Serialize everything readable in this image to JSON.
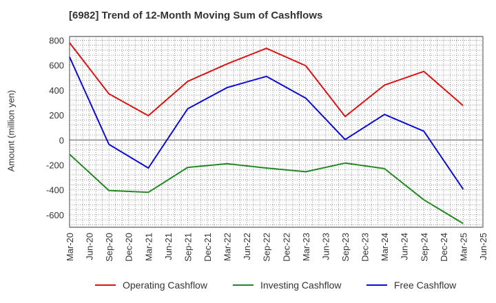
{
  "title": "[6982]  Trend of 12-Month Moving Sum of Cashflows",
  "chart_data": {
    "type": "line",
    "ylabel": "Amount (million yen)",
    "xlabel": "",
    "ylim": [
      -700,
      830
    ],
    "yticks": [
      800,
      600,
      400,
      200,
      0,
      -200,
      -400,
      -600
    ],
    "x": [
      "Mar-20",
      "Jun-20",
      "Sep-20",
      "Dec-20",
      "Mar-21",
      "Jun-21",
      "Sep-21",
      "Dec-21",
      "Mar-22",
      "Jun-22",
      "Sep-22",
      "Dec-22",
      "Mar-23",
      "Jun-23",
      "Sep-23",
      "Dec-23",
      "Mar-24",
      "Jun-24",
      "Sep-24",
      "Dec-24",
      "Mar-25",
      "Jun-25"
    ],
    "grid": true,
    "legend_position": "bottom",
    "series": [
      {
        "name": "Operating Cashflow",
        "color": "#dd1111",
        "points": [
          [
            "Mar-20",
            780
          ],
          [
            "Sep-20",
            370
          ],
          [
            "Mar-21",
            195
          ],
          [
            "Sep-21",
            470
          ],
          [
            "Mar-22",
            610
          ],
          [
            "Sep-22",
            735
          ],
          [
            "Mar-23",
            595
          ],
          [
            "Sep-23",
            188
          ],
          [
            "Mar-24",
            440
          ],
          [
            "Sep-24",
            550
          ],
          [
            "Mar-25",
            275
          ]
        ]
      },
      {
        "name": "Investing Cashflow",
        "color": "#228822",
        "points": [
          [
            "Mar-20",
            -115
          ],
          [
            "Sep-20",
            -405
          ],
          [
            "Mar-21",
            -420
          ],
          [
            "Sep-21",
            -220
          ],
          [
            "Mar-22",
            -190
          ],
          [
            "Sep-22",
            -225
          ],
          [
            "Mar-23",
            -255
          ],
          [
            "Sep-23",
            -185
          ],
          [
            "Mar-24",
            -230
          ],
          [
            "Sep-24",
            -480
          ],
          [
            "Mar-25",
            -670
          ]
        ]
      },
      {
        "name": "Free Cashflow",
        "color": "#0a0ad6",
        "points": [
          [
            "Mar-20",
            665
          ],
          [
            "Sep-20",
            -35
          ],
          [
            "Mar-21",
            -225
          ],
          [
            "Sep-21",
            250
          ],
          [
            "Mar-22",
            420
          ],
          [
            "Sep-22",
            510
          ],
          [
            "Mar-23",
            335
          ],
          [
            "Sep-23",
            3
          ],
          [
            "Mar-24",
            205
          ],
          [
            "Sep-24",
            70
          ],
          [
            "Mar-25",
            -395
          ]
        ]
      }
    ]
  }
}
